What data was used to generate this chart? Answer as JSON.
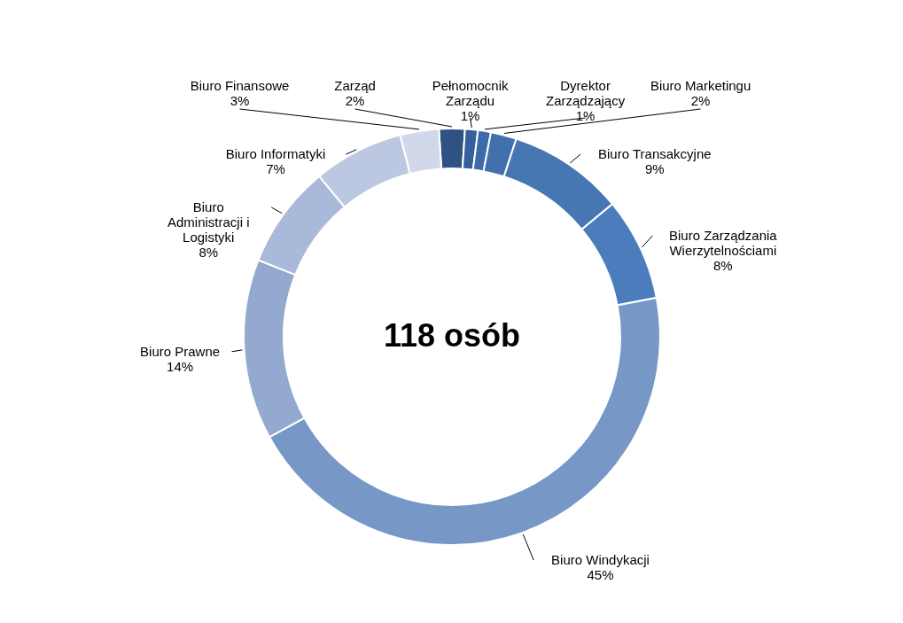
{
  "chart_data": {
    "type": "donut",
    "categories": [
      "Zarząd",
      "Pełnomocnik Zarządu",
      "Dyrektor Zarządzający",
      "Biuro Marketingu",
      "Biuro Transakcyjne",
      "Biuro Zarządzania Wierzytelnościami",
      "Biuro Windykacji",
      "Biuro Prawne",
      "Biuro Administracji i Logistyki",
      "Biuro Informatyki",
      "Biuro Finansowe"
    ],
    "values": [
      2,
      1,
      1,
      2,
      9,
      8,
      45,
      14,
      8,
      7,
      3
    ],
    "colors": [
      "#2f5283",
      "#37609a",
      "#3d6aa8",
      "#4270ad",
      "#4677b2",
      "#4b7dbd",
      "#7797c6",
      "#93a9d0",
      "#a9b9d9",
      "#bcc8e2",
      "#d0d8ea"
    ],
    "value_labels": [
      "2%",
      "1%",
      "1%",
      "2%",
      "9%",
      "8%",
      "45%",
      "14%",
      "8%",
      "7%",
      "3%"
    ],
    "legend": false,
    "annotations": [
      "118  osób"
    ]
  }
}
